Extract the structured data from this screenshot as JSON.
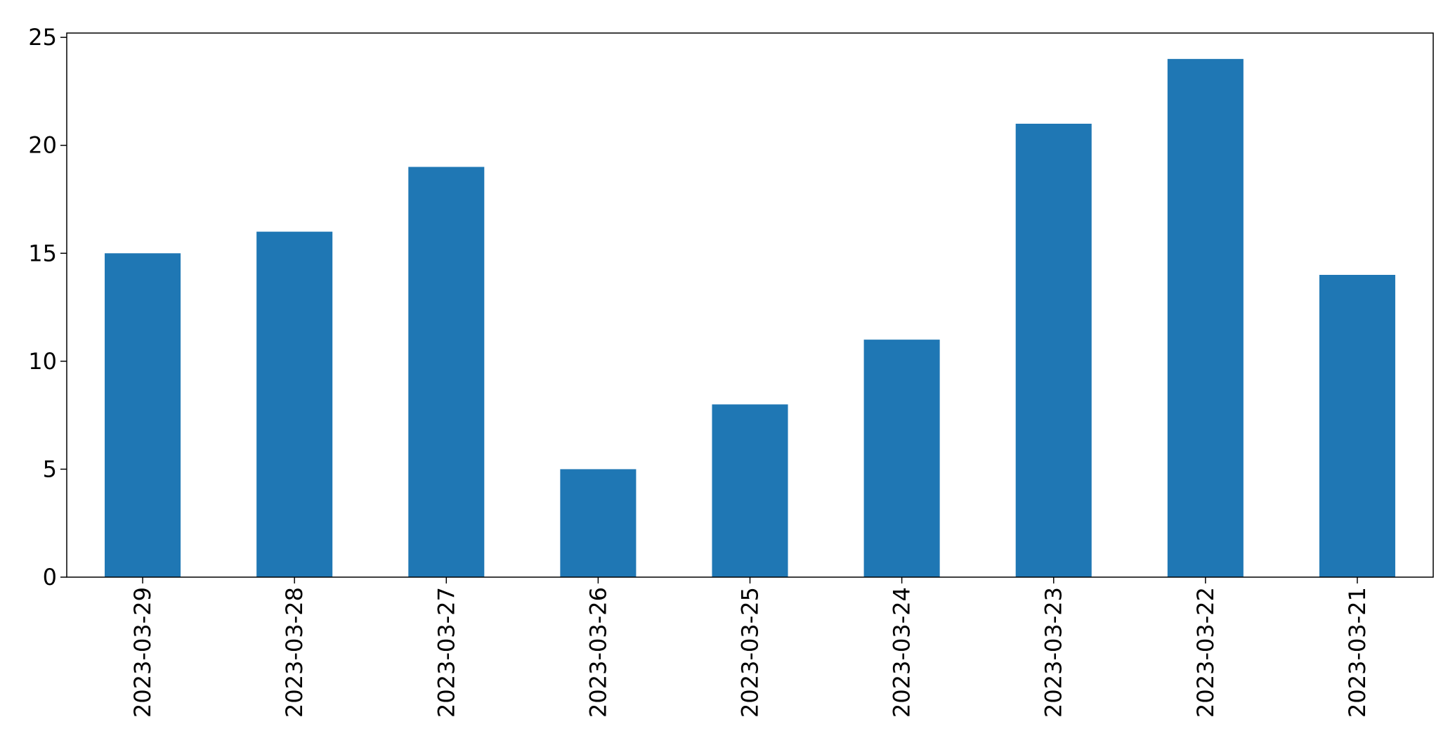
{
  "chart_data": {
    "type": "bar",
    "categories": [
      "2023-03-29",
      "2023-03-28",
      "2023-03-27",
      "2023-03-26",
      "2023-03-25",
      "2023-03-24",
      "2023-03-23",
      "2023-03-22",
      "2023-03-21"
    ],
    "values": [
      15,
      16,
      19,
      5,
      8,
      11,
      21,
      24,
      14
    ],
    "title": "",
    "xlabel": "",
    "ylabel": "",
    "ylim": [
      0,
      25.2
    ],
    "yticks": [
      0,
      5,
      10,
      15,
      20,
      25
    ],
    "ytick_labels": [
      "0",
      "5",
      "10",
      "15",
      "20",
      "25"
    ],
    "grid": false,
    "legend": "none",
    "colors": {
      "bar": "#1f77b4",
      "axis": "#000000",
      "background": "#ffffff"
    }
  }
}
